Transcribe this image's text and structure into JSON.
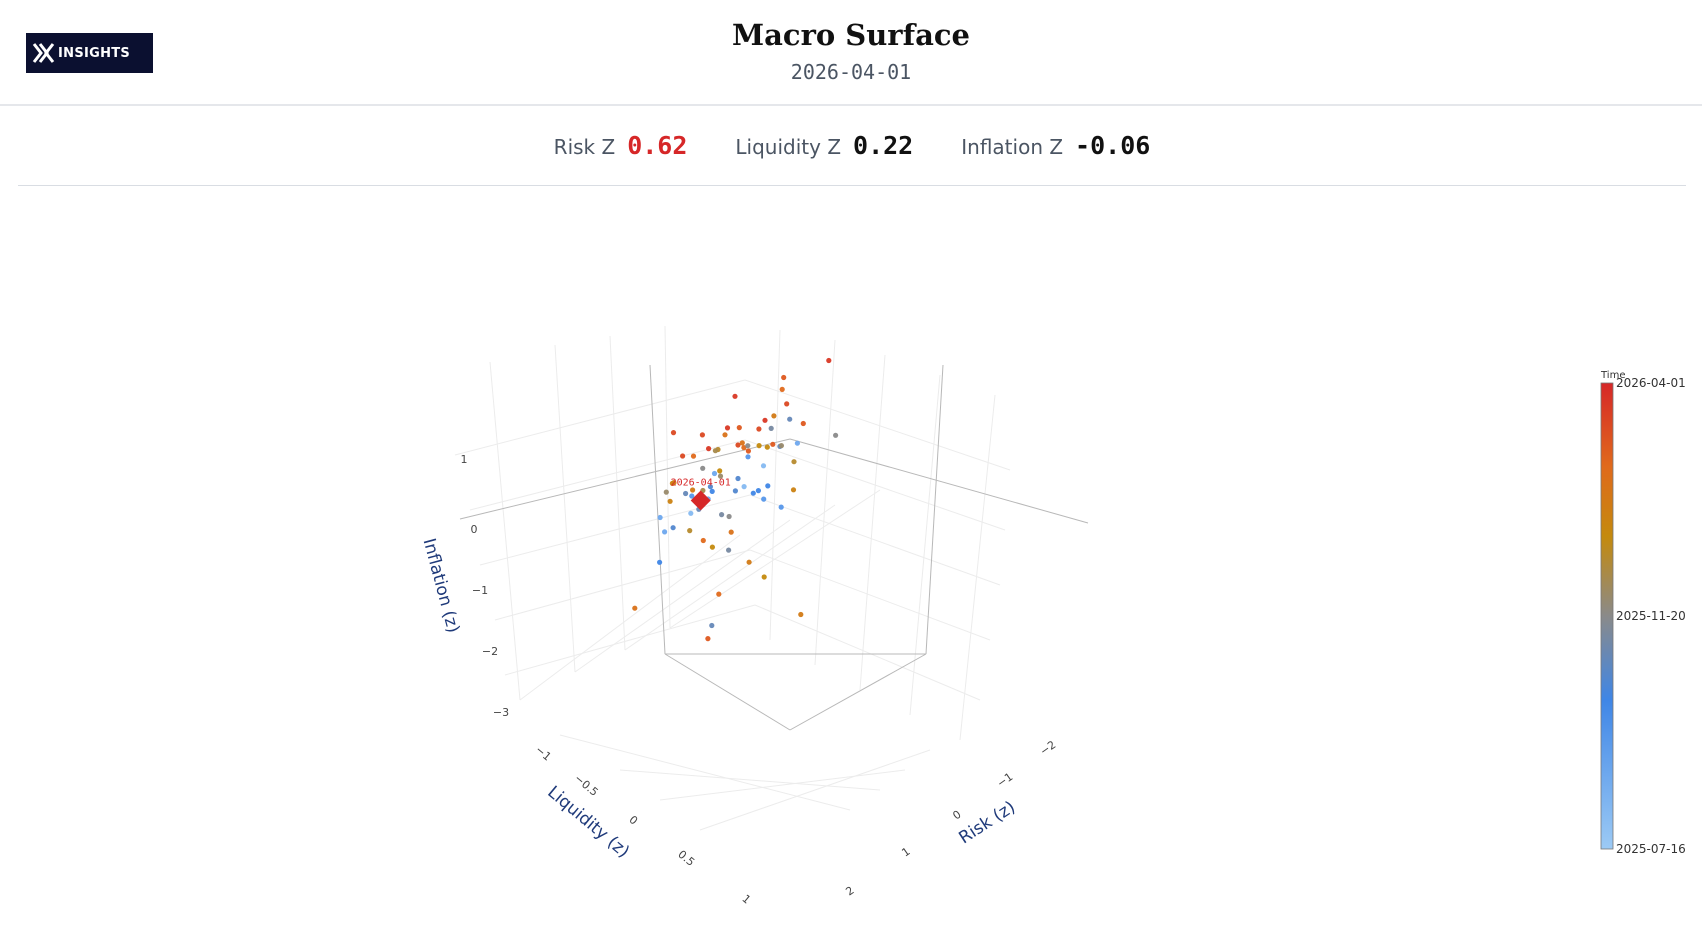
{
  "header": {
    "logo_text": "INSIGHTS",
    "title": "Macro Surface",
    "date": "2026-04-01"
  },
  "metrics": [
    {
      "label": "Risk Z",
      "value": "0.62",
      "color": "#d62728"
    },
    {
      "label": "Liquidity Z",
      "value": "0.22",
      "color": "#111111"
    },
    {
      "label": "Inflation Z",
      "value": "-0.06",
      "color": "#111111"
    }
  ],
  "chart_data": {
    "type": "scatter3d",
    "xlabel": "Risk (z)",
    "ylabel": "Liquidity (z)",
    "zlabel": "Inflation (z)",
    "x_ticks": [
      "−2",
      "−1",
      "0",
      "1",
      "2"
    ],
    "y_ticks": [
      "−1",
      "−0.5",
      "0",
      "0.5",
      "1"
    ],
    "z_ticks": [
      "1",
      "0",
      "−1",
      "−2",
      "−3"
    ],
    "xlim": [
      -2.4,
      2.4
    ],
    "ylim": [
      -1.2,
      1.2
    ],
    "zlim": [
      -3.4,
      1.5
    ],
    "colorbar": {
      "title": "Time",
      "ticks": [
        "2026-04-01",
        "2025-11-20",
        "2025-07-16"
      ],
      "colors": [
        "#d62728",
        "#e06a1c",
        "#c48a0e",
        "#8a8a8a",
        "#3f86e6",
        "#9ccaf5"
      ]
    },
    "current_point": {
      "label": "2026-04-01",
      "x": 0.62,
      "y": 0.22,
      "z": -0.06,
      "color": "#d62728"
    },
    "series_points": [
      [
        -0.3,
        0.1,
        0.6,
        0.9
      ],
      [
        0.2,
        -0.3,
        0.4,
        0.85
      ],
      [
        0.5,
        0.4,
        0.2,
        0.7
      ],
      [
        -0.6,
        -0.2,
        0.3,
        0.6
      ],
      [
        0.1,
        0.5,
        -0.2,
        0.3
      ],
      [
        -0.2,
        -0.4,
        -0.4,
        0.2
      ],
      [
        0.8,
        0.1,
        0.1,
        0.5
      ],
      [
        -0.9,
        0.3,
        0.5,
        0.8
      ],
      [
        0.3,
        -0.6,
        0.8,
        0.95
      ],
      [
        -0.4,
        0.6,
        -0.1,
        0.1
      ],
      [
        0.6,
        -0.2,
        -0.6,
        0.4
      ],
      [
        -0.1,
        0.2,
        0.9,
        0.75
      ],
      [
        1.1,
        -0.3,
        0.3,
        0.6
      ],
      [
        -1.2,
        -0.1,
        0.2,
        0.3
      ],
      [
        0.4,
        0.3,
        1.1,
        0.9
      ],
      [
        -0.5,
        0.5,
        0.7,
        0.55
      ],
      [
        0.0,
        -0.7,
        -0.9,
        0.15
      ],
      [
        0.7,
        0.6,
        -0.3,
        0.25
      ],
      [
        -0.8,
        -0.5,
        -0.7,
        0.65
      ],
      [
        0.2,
        0.0,
        -1.2,
        0.35
      ],
      [
        1.5,
        0.2,
        0.5,
        0.7
      ],
      [
        -1.4,
        0.4,
        -0.4,
        0.2
      ],
      [
        0.9,
        -0.5,
        0.9,
        0.85
      ],
      [
        -0.3,
        -0.8,
        0.1,
        0.1
      ],
      [
        0.5,
        0.8,
        0.4,
        0.45
      ],
      [
        -0.7,
        0.2,
        -0.2,
        0.05
      ],
      [
        1.2,
        -0.1,
        -0.8,
        0.8
      ],
      [
        -1.0,
        -0.3,
        0.9,
        0.9
      ],
      [
        0.1,
        0.7,
        0.2,
        0.3
      ],
      [
        -0.2,
        -0.1,
        0.3,
        0.15
      ],
      [
        0.3,
        0.2,
        0.0,
        0.2
      ],
      [
        -0.4,
        0.0,
        0.5,
        0.4
      ],
      [
        0.6,
        -0.4,
        0.6,
        0.75
      ],
      [
        -0.6,
        0.6,
        0.3,
        0.1
      ],
      [
        0.8,
        0.3,
        -0.5,
        0.55
      ],
      [
        -0.9,
        -0.6,
        0.4,
        0.85
      ],
      [
        0.0,
        0.4,
        0.8,
        0.95
      ],
      [
        0.4,
        -0.2,
        -0.2,
        0.25
      ],
      [
        -0.1,
        -0.5,
        0.6,
        0.35
      ],
      [
        1.0,
        0.5,
        0.2,
        0.65
      ],
      [
        -1.1,
        0.1,
        0.0,
        0.05
      ],
      [
        0.2,
        -0.8,
        0.2,
        0.45
      ],
      [
        -0.5,
        0.3,
        -0.9,
        0.75
      ],
      [
        0.7,
        -0.7,
        0.7,
        0.9
      ],
      [
        -0.3,
        0.8,
        0.1,
        0.15
      ],
      [
        1.3,
        0.0,
        0.8,
        0.8
      ],
      [
        -1.3,
        -0.2,
        0.6,
        0.3
      ],
      [
        0.5,
        0.1,
        -1.0,
        0.6
      ],
      [
        -0.8,
        0.5,
        1.0,
        0.95
      ],
      [
        0.9,
        0.7,
        0.0,
        0.1
      ],
      [
        -0.2,
        0.3,
        -0.5,
        0.35
      ],
      [
        0.3,
        -0.5,
        -0.4,
        0.2
      ],
      [
        -0.6,
        -0.3,
        0.8,
        0.7
      ],
      [
        0.6,
        0.2,
        0.5,
        0.4
      ],
      [
        -0.4,
        -0.7,
        -0.2,
        0.55
      ],
      [
        1.6,
        -0.4,
        0.1,
        0.25
      ],
      [
        -1.6,
        0.2,
        0.3,
        0.85
      ],
      [
        0.1,
        0.9,
        0.5,
        0.65
      ],
      [
        -0.9,
        0.0,
        -0.6,
        0.15
      ],
      [
        0.4,
        0.6,
        0.9,
        0.9
      ],
      [
        2.0,
        0.1,
        -0.3,
        0.1
      ],
      [
        1.8,
        -0.2,
        -0.2,
        0.05
      ],
      [
        -0.5,
        -0.2,
        -2.0,
        0.6
      ],
      [
        0.3,
        0.1,
        -1.9,
        0.8
      ],
      [
        -0.1,
        0.4,
        -2.4,
        0.3
      ],
      [
        0.8,
        -0.6,
        -1.6,
        0.7
      ],
      [
        -0.6,
        0.7,
        -2.6,
        0.85
      ],
      [
        -2.1,
        0.3,
        1.2,
        0.8
      ],
      [
        -1.7,
        -0.6,
        1.3,
        0.95
      ],
      [
        1.9,
        0.6,
        -1.4,
        0.75
      ],
      [
        -0.2,
        -0.9,
        -3.0,
        0.7
      ],
      [
        0.5,
        0.9,
        -0.8,
        0.2
      ],
      [
        -1.2,
        0.8,
        0.2,
        0.45
      ],
      [
        1.1,
        0.4,
        1.4,
        0.9
      ],
      [
        -0.7,
        -0.4,
        1.4,
        0.85
      ],
      [
        0.0,
        0.0,
        1.5,
        0.95
      ],
      [
        0.9,
        -0.8,
        0.4,
        0.6
      ],
      [
        -1.5,
        -0.8,
        -0.1,
        0.4
      ],
      [
        0.2,
        0.2,
        0.7,
        0.5
      ],
      [
        -0.3,
        0.1,
        0.0,
        0.25
      ]
    ]
  }
}
